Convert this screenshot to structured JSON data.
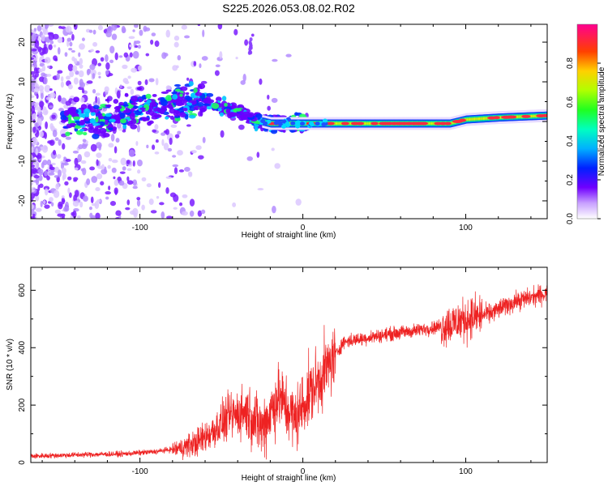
{
  "figure_title": "S225.2026.053.08.02.R02",
  "colors": {
    "axis": "#000000",
    "snr_line": "#ee2222",
    "colormap": [
      "#ffffff",
      "#b090ff",
      "#6a00ff",
      "#0030ff",
      "#00c8ff",
      "#00ff90",
      "#40ff00",
      "#e8ff00",
      "#ffa000",
      "#ff2020",
      "#ff00a0"
    ]
  },
  "chart_data": [
    {
      "type": "heatmap",
      "title": "",
      "xlabel": "Height of straight line (km)",
      "ylabel": "Frequency (Hz)",
      "xlim": [
        -167,
        150
      ],
      "ylim": [
        -24.5,
        24.5
      ],
      "xticks": [
        -100,
        0,
        100
      ],
      "yticks": [
        -20,
        -10,
        0,
        10,
        20
      ],
      "colorbar": {
        "label": "Normalized spectral amplitude",
        "range": [
          0.0,
          1.0
        ],
        "ticks": [
          0.0,
          0.2,
          0.4,
          0.6,
          0.8
        ]
      },
      "ridge": {
        "description_points": [
          {
            "x": -120,
            "y": 0.5
          },
          {
            "x": -100,
            "y": 3.0
          },
          {
            "x": -80,
            "y": 5.0
          },
          {
            "x": -60,
            "y": 5.5
          },
          {
            "x": -45,
            "y": 3.0
          },
          {
            "x": -30,
            "y": 0.5
          },
          {
            "x": -20,
            "y": -0.5
          },
          {
            "x": 0,
            "y": -0.5
          },
          {
            "x": 60,
            "y": -0.5
          },
          {
            "x": 90,
            "y": -0.5
          },
          {
            "x": 100,
            "y": 0.5
          },
          {
            "x": 120,
            "y": 1.0
          },
          {
            "x": 150,
            "y": 1.5
          }
        ]
      }
    },
    {
      "type": "line",
      "title": "",
      "xlabel": "Height of straight line (km)",
      "ylabel": "SNR (10 * v/v)",
      "xlim": [
        -167,
        150
      ],
      "ylim": [
        0,
        680
      ],
      "xticks": [
        -100,
        0,
        100
      ],
      "yticks": [
        0,
        200,
        400,
        600
      ],
      "series": [
        {
          "name": "",
          "x": [
            -167,
            -150,
            -130,
            -110,
            -90,
            -75,
            -65,
            -55,
            -45,
            -35,
            -25,
            -15,
            -5,
            5,
            15,
            25,
            35,
            50,
            70,
            90,
            100,
            115,
            130,
            150
          ],
          "y": [
            22,
            25,
            28,
            30,
            38,
            50,
            70,
            110,
            160,
            180,
            120,
            230,
            150,
            250,
            330,
            420,
            430,
            445,
            460,
            480,
            500,
            520,
            560,
            590
          ]
        }
      ]
    }
  ]
}
